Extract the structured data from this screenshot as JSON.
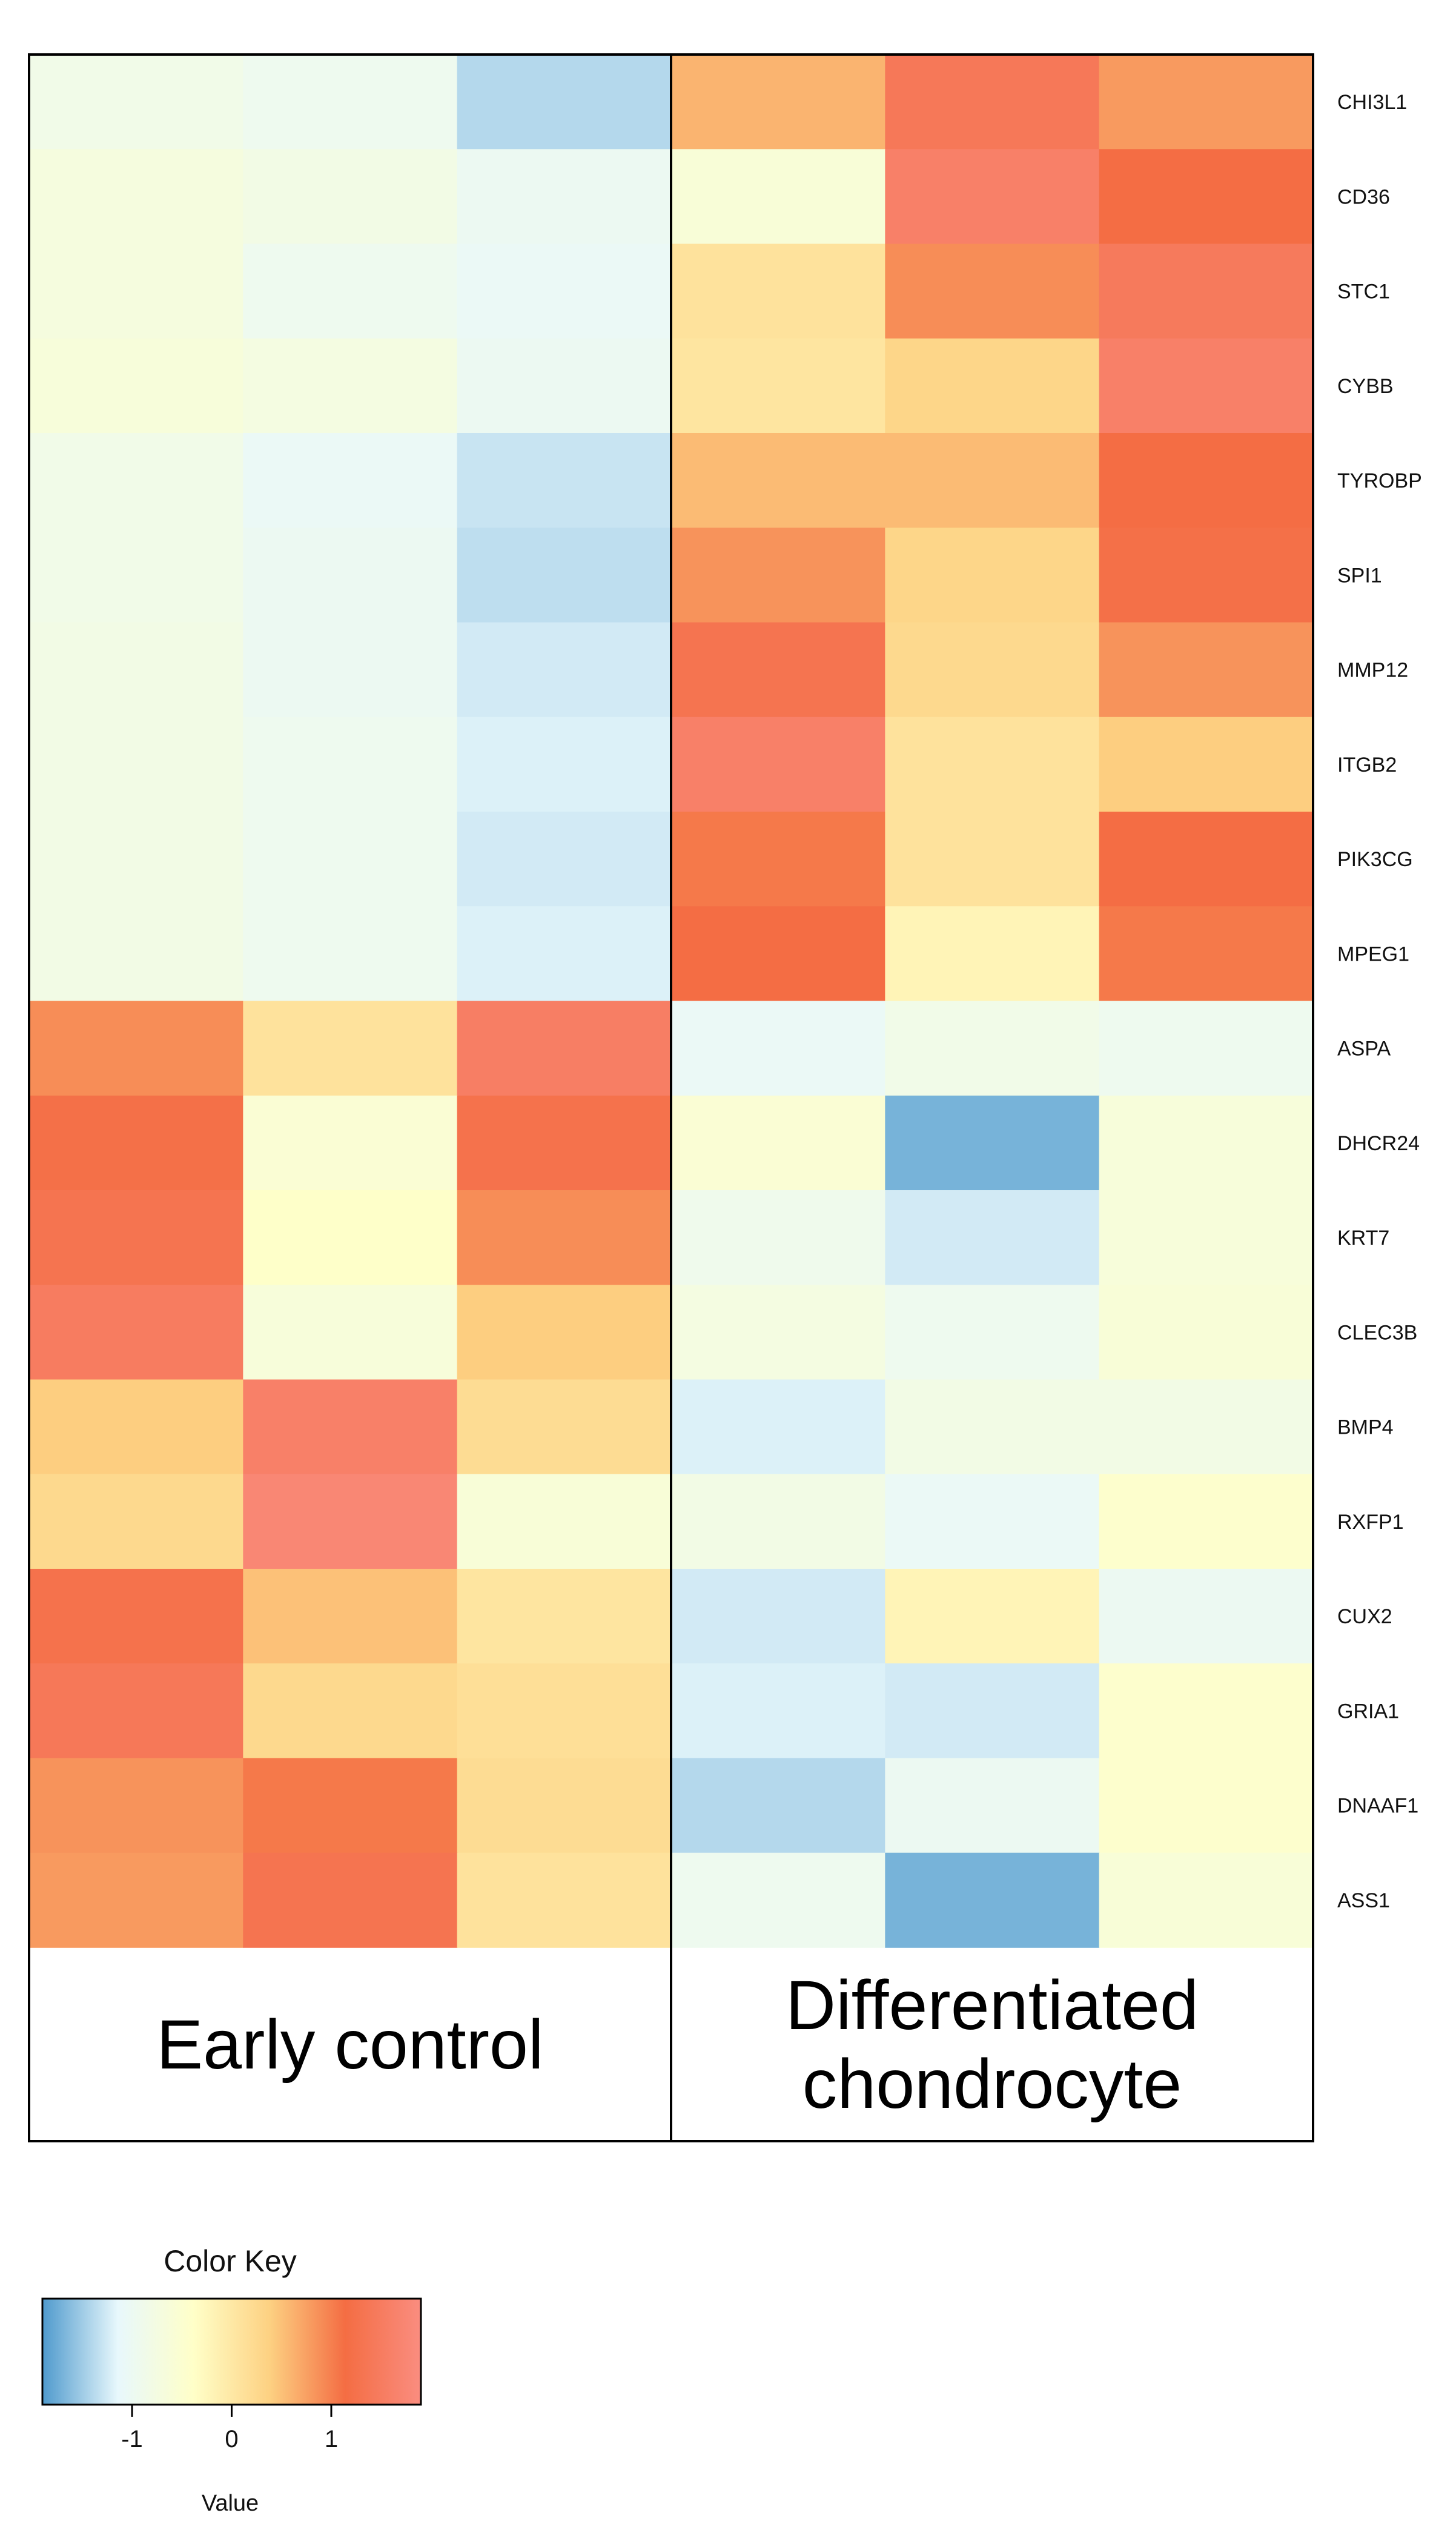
{
  "chart_data": {
    "type": "heatmap",
    "rows": [
      "CHI3L1",
      "CD36",
      "STC1",
      "CYBB",
      "TYROBP",
      "SPI1",
      "MMP12",
      "ITGB2",
      "PIK3CG",
      "MPEG1",
      "ASPA",
      "DHCR24",
      "KRT7",
      "CLEC3B",
      "BMP4",
      "RXFP1",
      "CUX2",
      "GRIA1",
      "DNAAF1",
      "ASS1"
    ],
    "groups": [
      {
        "label_lines": [
          "Early control"
        ],
        "columns": 3
      },
      {
        "label_lines": [
          "Differentiated",
          "chondrocyte"
        ],
        "columns": 3
      }
    ],
    "values": [
      [
        -0.85,
        -0.95,
        -1.4,
        0.6,
        1.4,
        0.8
      ],
      [
        -0.7,
        -0.8,
        -1.0,
        -0.6,
        1.6,
        1.15
      ],
      [
        -0.7,
        -0.95,
        -1.05,
        0.1,
        0.9,
        1.45
      ],
      [
        -0.65,
        -0.75,
        -1.0,
        0.05,
        0.3,
        1.6
      ],
      [
        -0.85,
        -1.05,
        -1.3,
        0.55,
        0.55,
        1.15
      ],
      [
        -0.85,
        -1.0,
        -1.35,
        0.85,
        0.3,
        1.2
      ],
      [
        -0.8,
        -1.0,
        -1.25,
        1.3,
        0.25,
        0.85
      ],
      [
        -0.8,
        -0.95,
        -1.2,
        1.6,
        0.1,
        0.4
      ],
      [
        -0.8,
        -0.95,
        -1.25,
        1.05,
        0.1,
        1.15
      ],
      [
        -0.8,
        -0.95,
        -1.2,
        1.15,
        -0.2,
        1.05
      ],
      [
        0.9,
        0.1,
        1.55,
        -1.05,
        -0.85,
        -0.95
      ],
      [
        1.2,
        -0.55,
        1.25,
        -0.55,
        -1.7,
        -0.65
      ],
      [
        1.3,
        -0.4,
        0.9,
        -0.9,
        -1.25,
        -0.65
      ],
      [
        1.5,
        -0.65,
        0.4,
        -0.75,
        -0.95,
        -0.6
      ],
      [
        0.4,
        1.6,
        0.2,
        -1.2,
        -0.8,
        -0.8
      ],
      [
        0.25,
        1.75,
        -0.6,
        -0.8,
        -1.05,
        -0.45
      ],
      [
        1.25,
        0.5,
        0.05,
        -1.25,
        -0.2,
        -1.0
      ],
      [
        1.4,
        0.25,
        0.15,
        -1.2,
        -1.25,
        -0.45
      ],
      [
        0.85,
        1.05,
        0.2,
        -1.4,
        -1.0,
        -0.45
      ],
      [
        0.8,
        1.3,
        0.1,
        -0.95,
        -1.7,
        -0.6
      ]
    ],
    "color_key": {
      "title": "Color Key",
      "xlabel": "Value",
      "range": [
        -1.9,
        1.9
      ],
      "ticks": [
        -1,
        0,
        1
      ],
      "tick_labels": [
        "-1",
        "0",
        "1"
      ],
      "colors": [
        "#4f9acd",
        "#e8f8fc",
        "#ffffc8",
        "#fdd182",
        "#f46d43",
        "#fa8d80"
      ]
    }
  }
}
